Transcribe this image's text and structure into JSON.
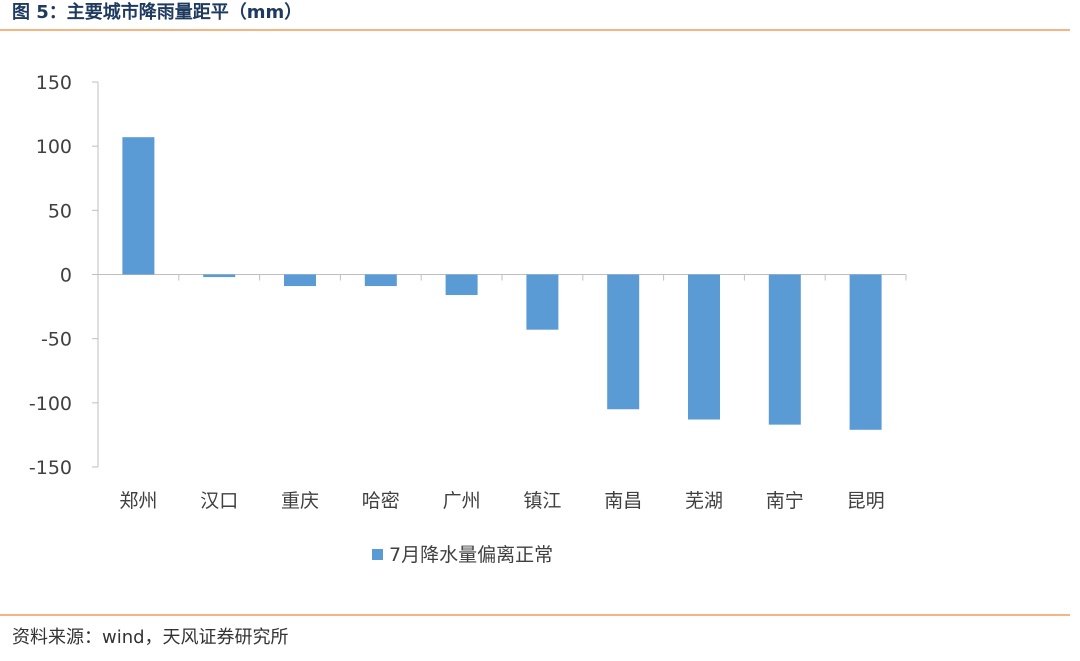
{
  "header": {
    "title": "图 5：主要城市降雨量距平（mm）"
  },
  "footer": {
    "source": "资料来源：wind，天风证券研究所"
  },
  "colors": {
    "bar": "#5b9bd5",
    "rule": "#f5b482",
    "axis": "#bfbfbf"
  },
  "chart_data": {
    "type": "bar",
    "categories": [
      "郑州",
      "汉口",
      "重庆",
      "哈密",
      "广州",
      "镇江",
      "南昌",
      "芜湖",
      "南宁",
      "昆明"
    ],
    "series": [
      {
        "name": "7月降水量偏离正常",
        "values": [
          107,
          -2,
          -9,
          -9,
          -16,
          -43,
          -105,
          -113,
          -117,
          -121
        ]
      }
    ],
    "ylim": [
      -150,
      150
    ],
    "yticks": [
      "150",
      "100",
      "50",
      "0",
      "-50",
      "-100",
      "-150"
    ],
    "legend_position": "bottom",
    "grid": false
  }
}
